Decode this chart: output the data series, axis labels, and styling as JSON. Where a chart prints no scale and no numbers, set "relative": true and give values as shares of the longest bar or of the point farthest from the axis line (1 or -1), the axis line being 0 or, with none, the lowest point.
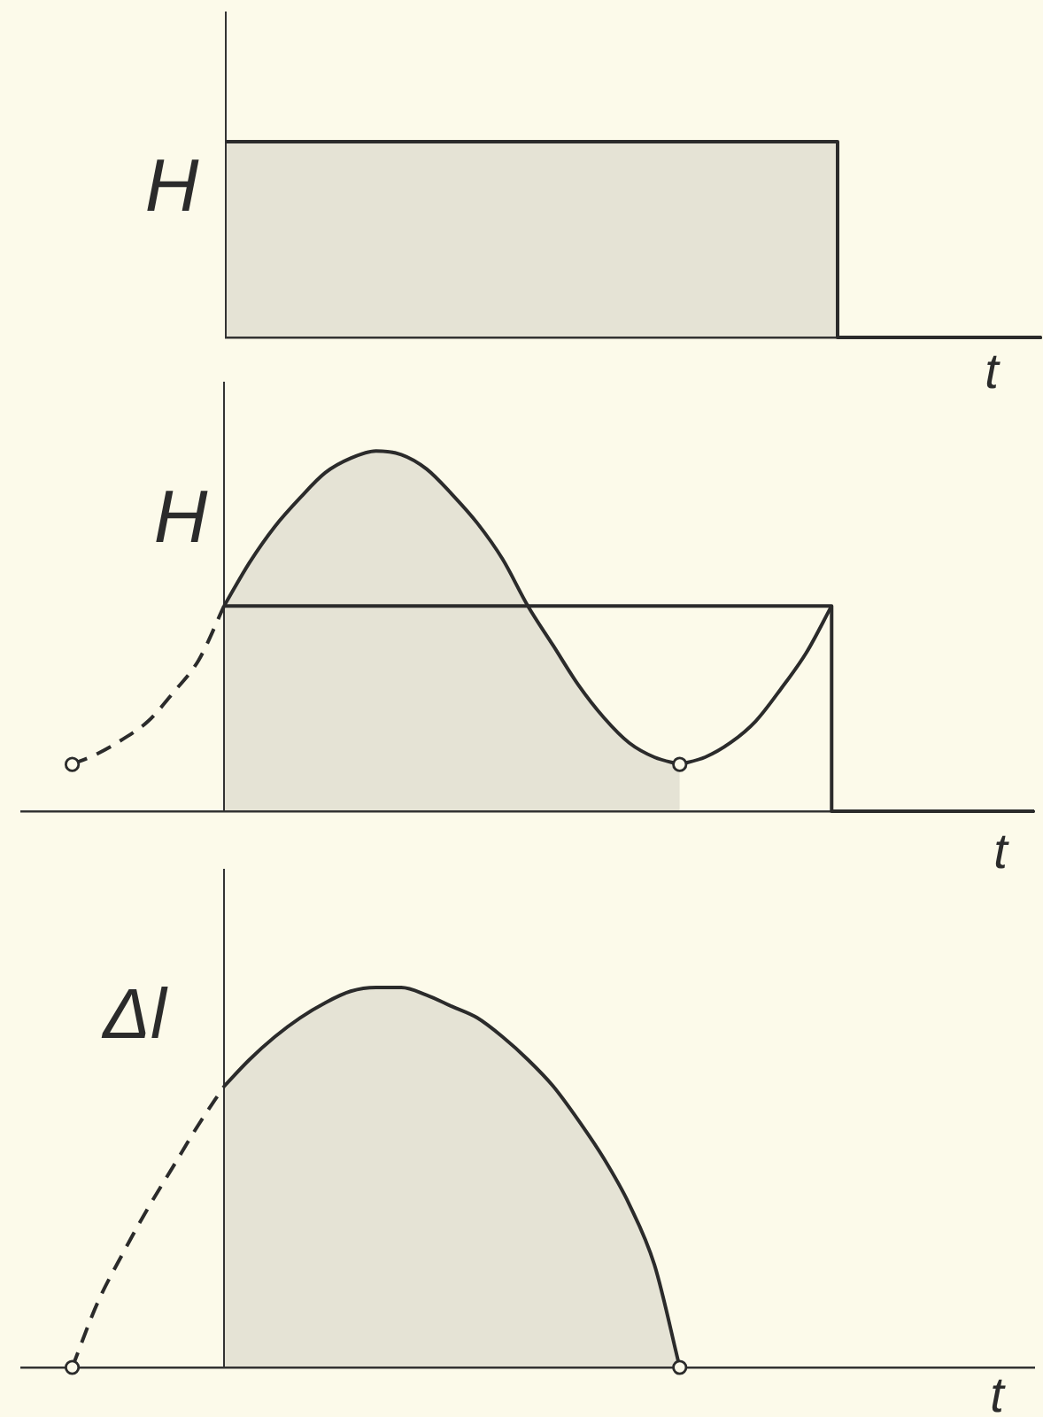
{
  "chart_data": [
    {
      "type": "area",
      "relative": true,
      "ylabel": "H",
      "xlabel": "t",
      "categories": [
        null,
        null,
        null,
        null,
        null,
        null,
        null,
        null,
        null,
        null,
        null,
        null,
        null,
        null,
        null,
        null,
        null,
        null,
        null,
        null,
        null,
        null,
        null,
        null,
        null,
        null,
        null,
        null,
        null,
        null,
        null,
        null,
        null
      ],
      "series": [
        {
          "type": "step",
          "color": "#2b2b2b",
          "values": [
            1,
            1,
            1,
            1,
            1,
            1,
            1,
            1,
            1,
            1,
            1,
            1,
            1,
            1,
            1,
            1,
            1,
            1,
            1,
            1,
            1,
            1,
            1,
            1,
            1,
            0,
            0,
            0,
            0,
            0,
            0,
            0,
            0
          ]
        }
      ]
    },
    {
      "type": "line",
      "relative": true,
      "ylabel": "H",
      "xlabel": "t",
      "categories": [
        null,
        null,
        null,
        null,
        null,
        null,
        null,
        null,
        null,
        null,
        null,
        null,
        null,
        null,
        null,
        null,
        null,
        null,
        null,
        null,
        null,
        null,
        null,
        null,
        null,
        null,
        null,
        null,
        null,
        null,
        null,
        null,
        null,
        null,
        null,
        null,
        null,
        null,
        null,
        null,
        null
      ],
      "series": [
        {
          "type": "line",
          "line_style": "dashed",
          "color": "#2b2b2b",
          "values": [
            null,
            null,
            0.13,
            0.16,
            0.2,
            0.25,
            0.33,
            0.42,
            0.57,
            null,
            null,
            null,
            null,
            null,
            null,
            null,
            null,
            null,
            null,
            null,
            null,
            null,
            null,
            null,
            null,
            null,
            null,
            null,
            null,
            null,
            null,
            null,
            null,
            null,
            null,
            null,
            null,
            null,
            null,
            null,
            null
          ]
        },
        {
          "type": "area",
          "color": "#2b2b2b",
          "values": [
            null,
            null,
            null,
            null,
            null,
            null,
            null,
            null,
            0.57,
            0.69,
            0.79,
            0.87,
            0.94,
            0.98,
            1,
            0.99,
            0.95,
            0.88,
            0.8,
            0.7,
            0.57,
            0.46,
            0.35,
            0.26,
            0.19,
            0.15,
            0.13,
            null,
            null,
            null,
            null,
            null,
            null,
            null,
            null,
            null,
            null,
            null,
            null,
            null,
            null
          ]
        },
        {
          "type": "line",
          "color": "#2b2b2b",
          "values": [
            null,
            null,
            null,
            null,
            null,
            null,
            null,
            null,
            null,
            null,
            null,
            null,
            null,
            null,
            null,
            null,
            null,
            null,
            null,
            null,
            null,
            null,
            null,
            null,
            null,
            null,
            0.13,
            0.15,
            0.19,
            0.25,
            0.34,
            0.44,
            0.57,
            null,
            null,
            null,
            null,
            null,
            null,
            null,
            null
          ]
        },
        {
          "type": "step",
          "color": "#2b2b2b",
          "values": [
            null,
            null,
            null,
            null,
            null,
            null,
            null,
            null,
            0.57,
            0.57,
            0.57,
            0.57,
            0.57,
            0.57,
            0.57,
            0.57,
            0.57,
            0.57,
            0.57,
            0.57,
            0.57,
            0.57,
            0.57,
            0.57,
            0.57,
            0.57,
            0.57,
            0.57,
            0.57,
            0.57,
            0.57,
            0.57,
            0.57,
            0,
            0,
            0,
            0,
            0,
            0,
            0,
            0
          ]
        },
        {
          "type": "line",
          "marker": "circle",
          "color": "#2b2b2b",
          "values": [
            null,
            null,
            0.13,
            null,
            null,
            null,
            null,
            null,
            null,
            null,
            null,
            null,
            null,
            null,
            null,
            null,
            null,
            null,
            null,
            null,
            null,
            null,
            null,
            null,
            null,
            null,
            0.13,
            null,
            null,
            null,
            null,
            null,
            null,
            null,
            null,
            null,
            null,
            null,
            null,
            null,
            null
          ]
        }
      ]
    },
    {
      "type": "area",
      "relative": true,
      "ylabel": "Δl",
      "xlabel": "t",
      "categories": [
        null,
        null,
        null,
        null,
        null,
        null,
        null,
        null,
        null,
        null,
        null,
        null,
        null,
        null,
        null,
        null,
        null,
        null,
        null,
        null,
        null,
        null,
        null,
        null,
        null,
        null,
        null,
        null,
        null,
        null,
        null,
        null,
        null,
        null,
        null,
        null,
        null,
        null,
        null,
        null,
        null
      ],
      "series": [
        {
          "type": "line",
          "line_style": "dashed",
          "color": "#2b2b2b",
          "values": [
            null,
            null,
            0,
            0.17,
            0.3,
            0.42,
            0.53,
            0.64,
            0.74,
            null,
            null,
            null,
            null,
            null,
            null,
            null,
            null,
            null,
            null,
            null,
            null,
            null,
            null,
            null,
            null,
            null,
            null,
            null,
            null,
            null,
            null,
            null,
            null,
            null,
            null,
            null,
            null,
            null,
            null,
            null,
            null
          ]
        },
        {
          "color": "#2b2b2b",
          "values": [
            null,
            null,
            null,
            null,
            null,
            null,
            null,
            null,
            0.74,
            0.81,
            0.87,
            0.92,
            0.96,
            0.99,
            1,
            1,
            0.98,
            0.95,
            0.92,
            0.87,
            0.81,
            0.74,
            0.65,
            0.55,
            0.43,
            0.27,
            0,
            null,
            null,
            null,
            null,
            null,
            null,
            null,
            null,
            null,
            null,
            null,
            null,
            null,
            null
          ]
        },
        {
          "type": "line",
          "marker": "circle",
          "color": "#2b2b2b",
          "values": [
            null,
            null,
            0,
            null,
            null,
            null,
            null,
            null,
            null,
            null,
            null,
            null,
            null,
            null,
            null,
            null,
            null,
            null,
            null,
            null,
            null,
            null,
            null,
            null,
            null,
            null,
            0,
            null,
            null,
            null,
            null,
            null,
            null,
            null,
            null,
            null,
            null,
            null,
            null,
            null,
            null
          ]
        }
      ]
    }
  ]
}
